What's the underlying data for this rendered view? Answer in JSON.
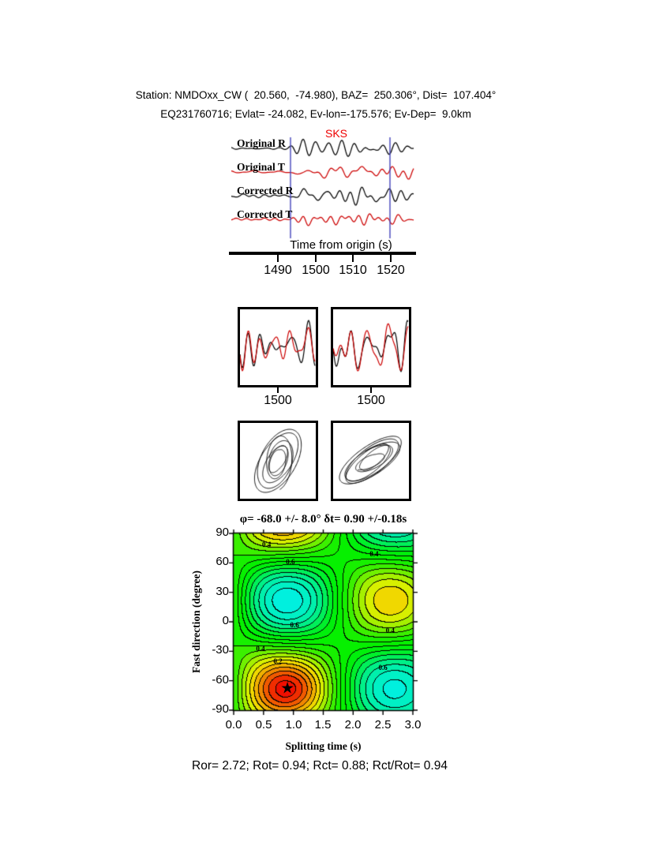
{
  "header": {
    "line1": "Station: NMDOxx_CW (  20.560,  -74.980), BAZ=  250.306°, Dist=  107.404°",
    "line2": "EQ231760716; Evlat= -24.082, Ev-lon=-175.576; Ev-Dep=  9.0km"
  },
  "footer": {
    "stats": "Ror= 2.72; Rot= 0.94; Rct= 0.88; Rct/Rot= 0.94"
  },
  "chart_data": [
    {
      "type": "line",
      "name": "seismogram-traces",
      "trace_labels": [
        "Original R",
        "Original T",
        "Corrected R",
        "Corrected T"
      ],
      "trace_colors": [
        "#000000",
        "#cc0000",
        "#000000",
        "#cc0000"
      ],
      "phase": "SKS",
      "phase_color": "#ee0000",
      "xlabel": "Time from origin (s)",
      "xticks": [
        "1490",
        "1500",
        "1510",
        "1520"
      ],
      "x_range": [
        1477,
        1526
      ],
      "window_lines_t": [
        1493.5,
        1520.0
      ],
      "window_color": "#4444bb"
    },
    {
      "type": "line",
      "name": "window-waveform-panels",
      "panel_count": 2,
      "xticks": [
        "1500"
      ],
      "colors": [
        "#000000",
        "#cc0000"
      ]
    },
    {
      "type": "scatter",
      "name": "particle-motion-panels",
      "panel_count": 2
    },
    {
      "type": "heatmap",
      "name": "splitting-energy-map",
      "title": "φ= -68.0 +/- 8.0° δt= 0.90 +/-0.18s",
      "xlabel": "Splitting time (s)",
      "ylabel": "Fast direction (degree)",
      "xticks": [
        "0.0",
        "0.5",
        "1.0",
        "1.5",
        "2.0",
        "2.5",
        "3.0"
      ],
      "yticks": [
        "90",
        "60",
        "30",
        "0",
        "-30",
        "-60",
        "-90"
      ],
      "x_range": [
        0,
        3
      ],
      "y_range": [
        -90,
        90
      ],
      "grid": false,
      "best": {
        "phi_deg": -68.0,
        "phi_err": 8.0,
        "dt_s": 0.9,
        "dt_err": 0.18
      },
      "star_glyph": "★",
      "contour_labels": [
        {
          "text": "0.4",
          "dt": 0.55,
          "phi": 79
        },
        {
          "text": "0.6",
          "dt": 0.95,
          "phi": 61
        },
        {
          "text": "0.4",
          "dt": 2.35,
          "phi": 69
        },
        {
          "text": "0.6",
          "dt": 1.02,
          "phi": -3
        },
        {
          "text": "0.4",
          "dt": 2.62,
          "phi": -9
        },
        {
          "text": "0.4",
          "dt": 0.45,
          "phi": -27
        },
        {
          "text": "0.2",
          "dt": 0.74,
          "phi": -40
        },
        {
          "text": "0.6",
          "dt": 2.5,
          "phi": -47
        }
      ]
    }
  ]
}
